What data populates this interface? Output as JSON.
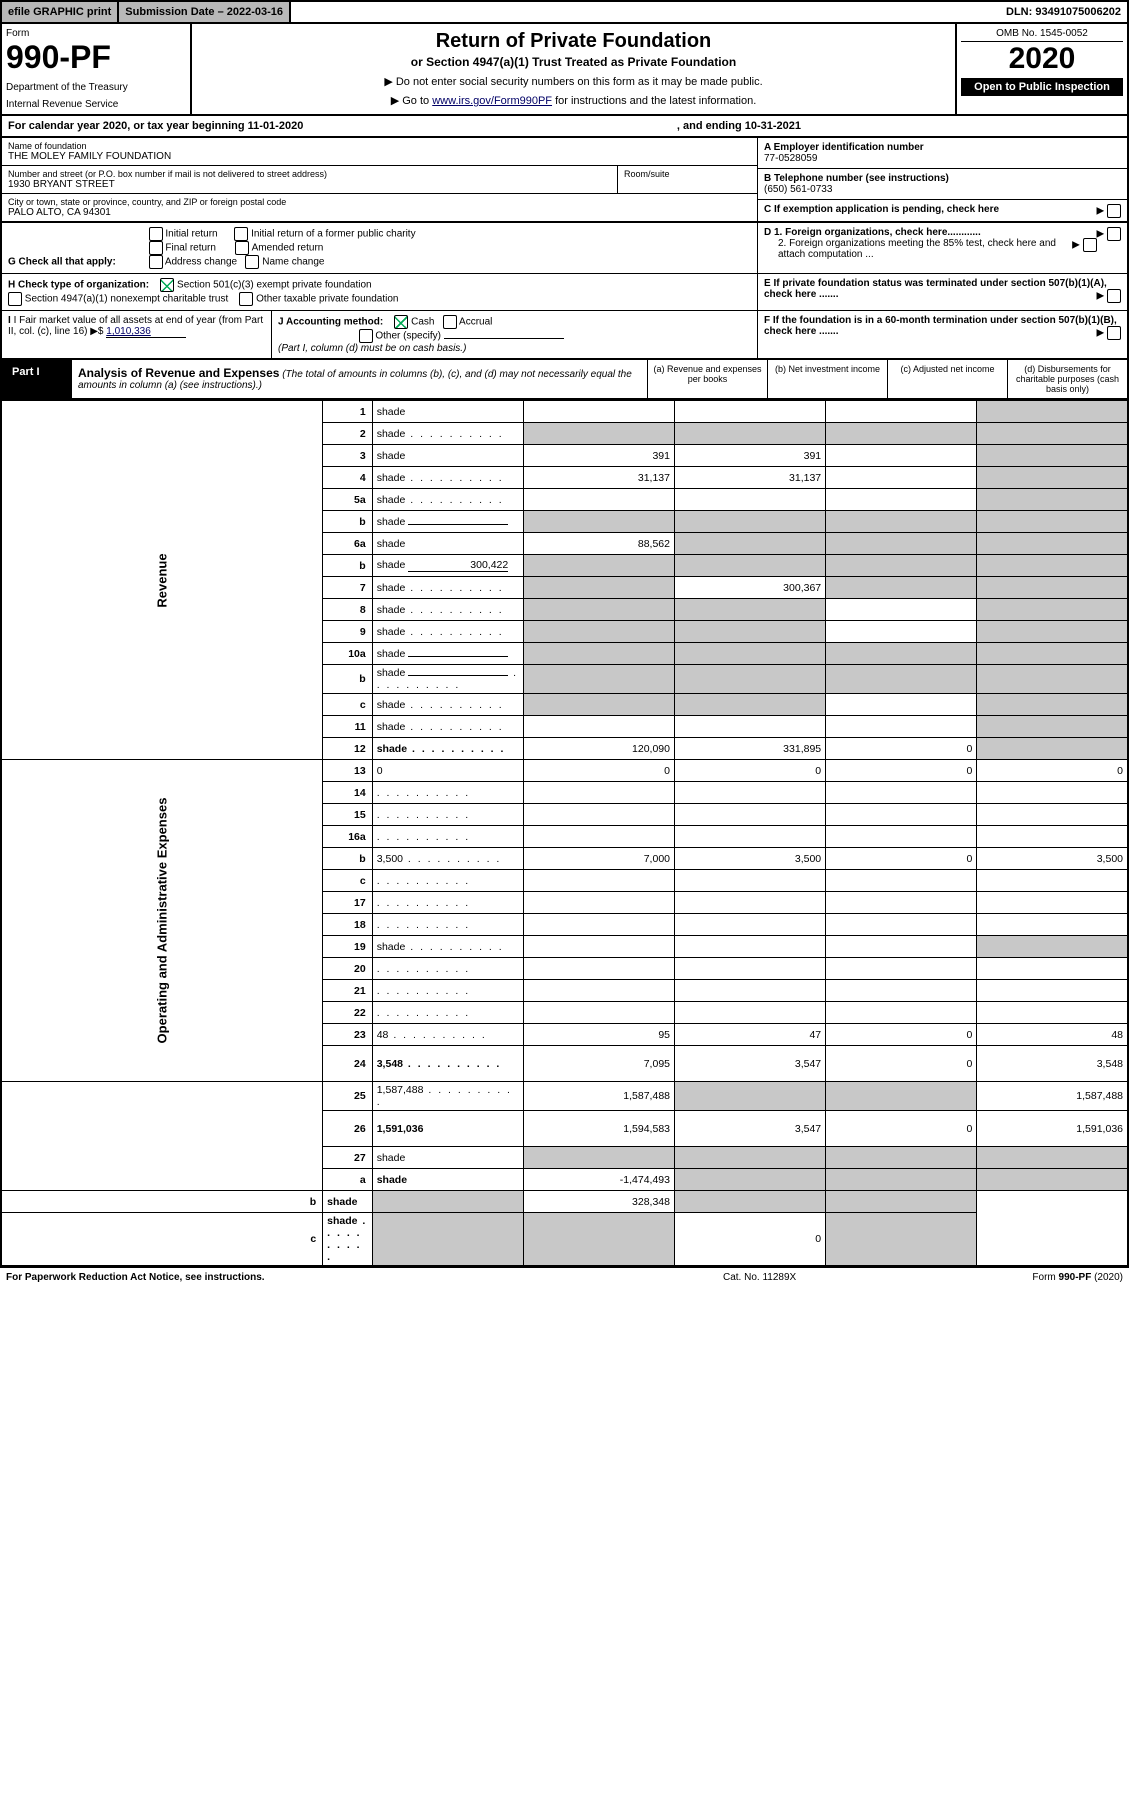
{
  "topbar": {
    "efile": "efile GRAPHIC print",
    "subdate_label": "Submission Date – 2022-03-16",
    "dln": "DLN: 93491075006202"
  },
  "header": {
    "form": "Form",
    "fnum": "990-PF",
    "dept": "Department of the Treasury",
    "irs": "Internal Revenue Service",
    "title": "Return of Private Foundation",
    "sub": "or Section 4947(a)(1) Trust Treated as Private Foundation",
    "inst1": "▶ Do not enter social security numbers on this form as it may be made public.",
    "inst2_pre": "▶ Go to ",
    "inst2_link": "www.irs.gov/Form990PF",
    "inst2_post": " for instructions and the latest information.",
    "omb": "OMB No. 1545-0052",
    "year": "2020",
    "open": "Open to Public Inspection"
  },
  "calendar": {
    "text": "For calendar year 2020, or tax year beginning 11-01-2020",
    "end": ", and ending 10-31-2021"
  },
  "entity": {
    "name_lbl": "Name of foundation",
    "name": "THE MOLEY FAMILY FOUNDATION",
    "addr_lbl": "Number and street (or P.O. box number if mail is not delivered to street address)",
    "addr": "1930 BRYANT STREET",
    "room_lbl": "Room/suite",
    "city_lbl": "City or town, state or province, country, and ZIP or foreign postal code",
    "city": "PALO ALTO, CA  94301",
    "a_lbl": "A Employer identification number",
    "a_val": "77-0528059",
    "b_lbl": "B Telephone number (see instructions)",
    "b_val": "(650) 561-0733",
    "c_lbl": "C If exemption application is pending, check here",
    "d1": "D 1. Foreign organizations, check here............",
    "d2": "2. Foreign organizations meeting the 85% test, check here and attach computation ...",
    "e": "E  If private foundation status was terminated under section 507(b)(1)(A), check here .......",
    "f": "F  If the foundation is in a 60-month termination under section 507(b)(1)(B), check here ......."
  },
  "g": {
    "label": "G Check all that apply:",
    "opts": [
      "Initial return",
      "Final return",
      "Address change",
      "Initial return of a former public charity",
      "Amended return",
      "Name change"
    ]
  },
  "h": {
    "label": "H Check type of organization:",
    "opt1": "Section 501(c)(3) exempt private foundation",
    "opt2": "Section 4947(a)(1) nonexempt charitable trust",
    "opt3": "Other taxable private foundation"
  },
  "i": {
    "label": "I Fair market value of all assets at end of year (from Part II, col. (c), line 16) ▶$ ",
    "val": "1,010,336"
  },
  "j": {
    "label": "J Accounting method:",
    "cash": "Cash",
    "accrual": "Accrual",
    "other": "Other (specify)",
    "note": "(Part I, column (d) must be on cash basis.)"
  },
  "part1": {
    "label": "Part I",
    "title": "Analysis of Revenue and Expenses",
    "note": " (The total of amounts in columns (b), (c), and (d) may not necessarily equal the amounts in column (a) (see instructions).)",
    "cols": {
      "a": "(a)  Revenue and expenses per books",
      "b": "(b)  Net investment income",
      "c": "(c)  Adjusted net income",
      "d": "(d)  Disbursements for charitable purposes (cash basis only)"
    }
  },
  "sections": {
    "revenue": "Revenue",
    "expenses": "Operating and Administrative Expenses"
  },
  "rows": [
    {
      "n": "1",
      "d": "shade",
      "a": "",
      "b": "",
      "c": ""
    },
    {
      "n": "2",
      "d": "shade",
      "dots": true,
      "a": "shade",
      "b": "shade",
      "c": "shade",
      "bold_not": true
    },
    {
      "n": "3",
      "d": "shade",
      "a": "391",
      "b": "391",
      "c": ""
    },
    {
      "n": "4",
      "d": "shade",
      "dots": true,
      "a": "31,137",
      "b": "31,137",
      "c": ""
    },
    {
      "n": "5a",
      "d": "shade",
      "dots": true,
      "a": "",
      "b": "",
      "c": ""
    },
    {
      "n": "b",
      "d": "shade",
      "inline": true,
      "a": "shade",
      "b": "shade",
      "c": "shade"
    },
    {
      "n": "6a",
      "d": "shade",
      "a": "88,562",
      "b": "shade",
      "c": "shade"
    },
    {
      "n": "b",
      "d": "shade",
      "inline": true,
      "inline_val": "300,422",
      "a": "shade",
      "b": "shade",
      "c": "shade"
    },
    {
      "n": "7",
      "d": "shade",
      "dots": true,
      "a": "shade",
      "b": "300,367",
      "c": "shade"
    },
    {
      "n": "8",
      "d": "shade",
      "dots": true,
      "a": "shade",
      "b": "shade",
      "c": ""
    },
    {
      "n": "9",
      "d": "shade",
      "dots": true,
      "a": "shade",
      "b": "shade",
      "c": ""
    },
    {
      "n": "10a",
      "d": "shade",
      "inline": true,
      "a": "shade",
      "b": "shade",
      "c": "shade"
    },
    {
      "n": "b",
      "d": "shade",
      "dots": true,
      "inline": true,
      "a": "shade",
      "b": "shade",
      "c": "shade"
    },
    {
      "n": "c",
      "d": "shade",
      "dots": true,
      "a": "shade",
      "b": "shade",
      "c": ""
    },
    {
      "n": "11",
      "d": "shade",
      "dots": true,
      "a": "",
      "b": "",
      "c": ""
    },
    {
      "n": "12",
      "d": "shade",
      "dots": true,
      "bold": true,
      "a": "120,090",
      "b": "331,895",
      "c": "0"
    },
    {
      "n": "13",
      "d": "0",
      "a": "0",
      "b": "0",
      "c": "0"
    },
    {
      "n": "14",
      "d": "",
      "dots": true,
      "a": "",
      "b": "",
      "c": ""
    },
    {
      "n": "15",
      "d": "",
      "dots": true,
      "a": "",
      "b": "",
      "c": ""
    },
    {
      "n": "16a",
      "d": "",
      "dots": true,
      "a": "",
      "b": "",
      "c": ""
    },
    {
      "n": "b",
      "d": "3,500",
      "dots": true,
      "a": "7,000",
      "b": "3,500",
      "c": "0"
    },
    {
      "n": "c",
      "d": "",
      "dots": true,
      "a": "",
      "b": "",
      "c": ""
    },
    {
      "n": "17",
      "d": "",
      "dots": true,
      "a": "",
      "b": "",
      "c": ""
    },
    {
      "n": "18",
      "d": "",
      "dots": true,
      "a": "",
      "b": "",
      "c": ""
    },
    {
      "n": "19",
      "d": "shade",
      "dots": true,
      "a": "",
      "b": "",
      "c": ""
    },
    {
      "n": "20",
      "d": "",
      "dots": true,
      "a": "",
      "b": "",
      "c": ""
    },
    {
      "n": "21",
      "d": "",
      "dots": true,
      "a": "",
      "b": "",
      "c": ""
    },
    {
      "n": "22",
      "d": "",
      "dots": true,
      "a": "",
      "b": "",
      "c": ""
    },
    {
      "n": "23",
      "d": "48",
      "dots": true,
      "a": "95",
      "b": "47",
      "c": "0"
    },
    {
      "n": "24",
      "d": "3,548",
      "dots": true,
      "bold": true,
      "tall": true,
      "a": "7,095",
      "b": "3,547",
      "c": "0"
    },
    {
      "n": "25",
      "d": "1,587,488",
      "dots": true,
      "a": "1,587,488",
      "b": "shade",
      "c": "shade"
    },
    {
      "n": "26",
      "d": "1,591,036",
      "bold": true,
      "tall": true,
      "a": "1,594,583",
      "b": "3,547",
      "c": "0"
    },
    {
      "n": "27",
      "d": "shade",
      "a": "shade",
      "b": "shade",
      "c": "shade"
    },
    {
      "n": "a",
      "d": "shade",
      "bold": true,
      "a": "-1,474,493",
      "b": "shade",
      "c": "shade"
    },
    {
      "n": "b",
      "d": "shade",
      "bold": true,
      "a": "shade",
      "b": "328,348",
      "c": "shade"
    },
    {
      "n": "c",
      "d": "shade",
      "dots": true,
      "bold": true,
      "a": "shade",
      "b": "shade",
      "c": "0"
    }
  ],
  "footer": {
    "l": "For Paperwork Reduction Act Notice, see instructions.",
    "c": "Cat. No. 11289X",
    "r": "Form 990-PF (2020)"
  }
}
